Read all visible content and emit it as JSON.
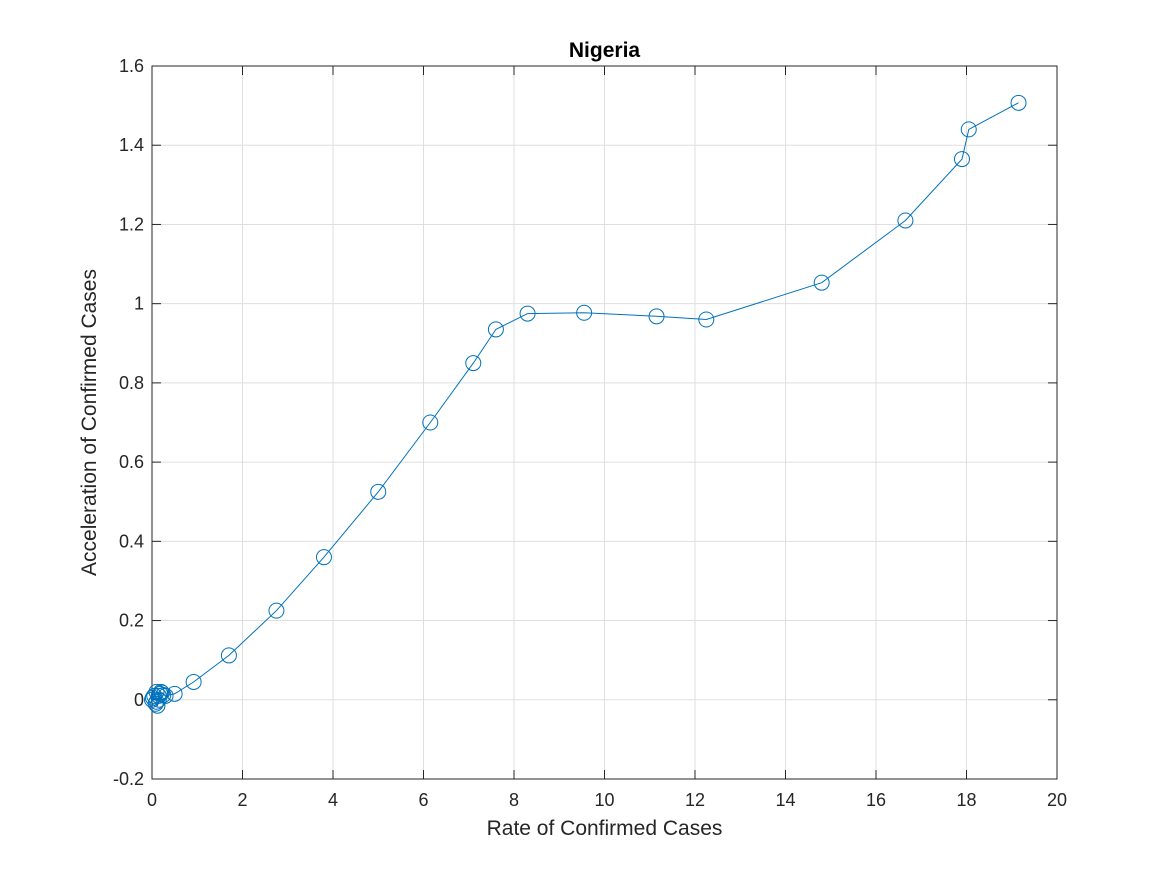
{
  "chart_data": {
    "type": "line",
    "title": "Nigeria",
    "xlabel": "Rate of Confirmed Cases",
    "ylabel": "Acceleration of Confirmed Cases",
    "xlim": [
      0,
      20
    ],
    "ylim": [
      -0.2,
      1.6
    ],
    "xticks": [
      0,
      2,
      4,
      6,
      8,
      10,
      12,
      14,
      16,
      18,
      20
    ],
    "yticks": [
      -0.2,
      0,
      0.2,
      0.4,
      0.6,
      0.8,
      1,
      1.2,
      1.4,
      1.6
    ],
    "xtick_labels": [
      "0",
      "2",
      "4",
      "6",
      "8",
      "10",
      "12",
      "14",
      "16",
      "18",
      "20"
    ],
    "ytick_labels": [
      "-0.2",
      "0",
      "0.2",
      "0.4",
      "0.6",
      "0.8",
      "1",
      "1.2",
      "1.4",
      "1.6"
    ],
    "grid": true,
    "marker": "circle",
    "color": "#0072BD",
    "series": [
      {
        "x": [
          0.0,
          0.02,
          0.05,
          0.1,
          0.08,
          0.12,
          0.15,
          0.1,
          0.18,
          0.2,
          0.15,
          0.25,
          0.22,
          0.3,
          0.5,
          0.92,
          1.7,
          2.75,
          3.8,
          5.0,
          6.15,
          7.1,
          7.6,
          8.3,
          9.55,
          11.15,
          12.25,
          14.8,
          16.65,
          17.9,
          18.05,
          19.15
        ],
        "y": [
          0.0,
          0.005,
          0.01,
          -0.005,
          -0.01,
          -0.015,
          0.01,
          0.02,
          0.015,
          0.02,
          0.0,
          0.012,
          0.018,
          0.01,
          0.015,
          0.045,
          0.112,
          0.225,
          0.36,
          0.525,
          0.7,
          0.85,
          0.935,
          0.975,
          0.977,
          0.968,
          0.96,
          1.053,
          1.21,
          1.365,
          1.44,
          1.507
        ]
      }
    ]
  }
}
